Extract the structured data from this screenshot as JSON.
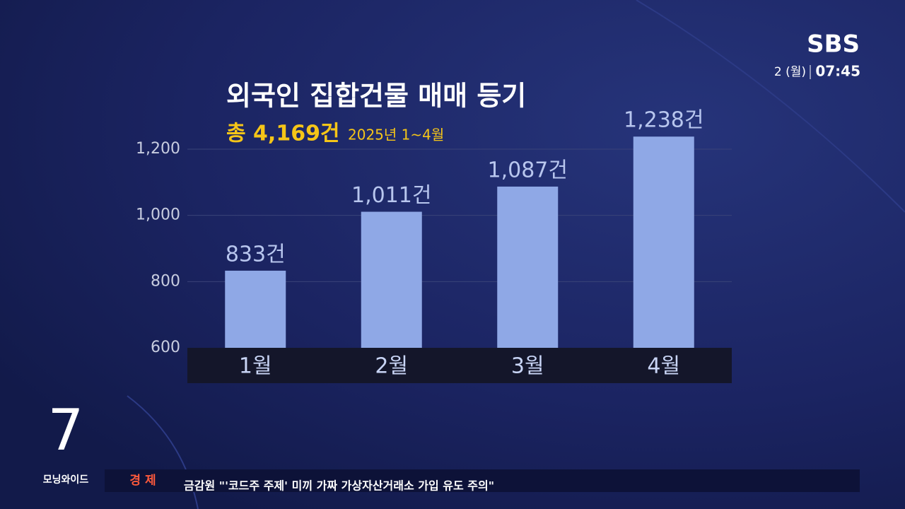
{
  "chart_data": {
    "type": "bar",
    "title": "외국인 집합건물 매매 등기",
    "subtitle": "총 4,169건",
    "period": "2025년 1~4월",
    "categories": [
      "1월",
      "2월",
      "3월",
      "4월"
    ],
    "values": [
      833,
      1011,
      1087,
      1238
    ],
    "value_labels": [
      "833건",
      "1,011건",
      "1,087건",
      "1,238건"
    ],
    "color": "#8fa8e6",
    "ylim": [
      600,
      1250
    ],
    "yticks": [
      600,
      800,
      {
        "value": 1000,
        "label": "1,000"
      },
      {
        "value": 1200,
        "label": "1,200"
      }
    ],
    "grid": true
  },
  "broadcast": {
    "logo": "SBS",
    "day": "2 (월)",
    "time": "07:45",
    "channel_number": "7",
    "program": "모닝와이드",
    "ticker_section": "경 제",
    "ticker_text": "금감원 \"'코드주 주제' 미끼 가짜 가상자산거래소 가입 유도 주의\""
  }
}
